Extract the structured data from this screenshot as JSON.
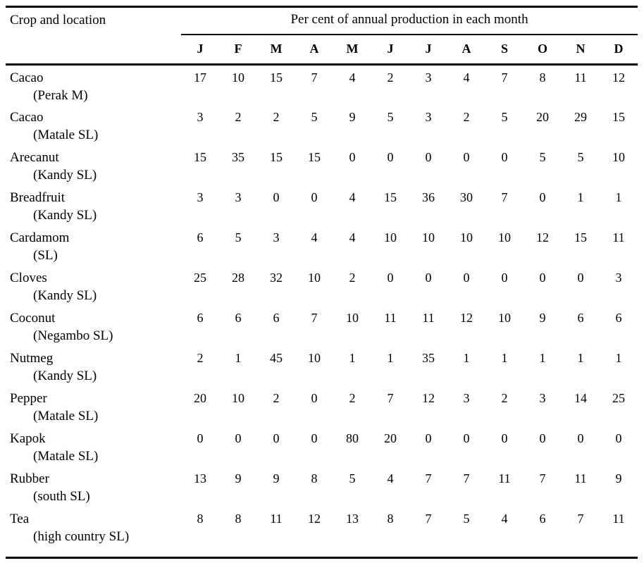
{
  "table": {
    "col1_header": "Crop and location",
    "span_header": "Per cent of annual production in each month",
    "months": [
      "J",
      "F",
      "M",
      "A",
      "M",
      "J",
      "J",
      "A",
      "S",
      "O",
      "N",
      "D"
    ],
    "rows": [
      {
        "crop": "Cacao",
        "location": "(Perak M)",
        "values": [
          17,
          10,
          15,
          7,
          4,
          2,
          3,
          4,
          7,
          8,
          11,
          12
        ]
      },
      {
        "crop": "Cacao",
        "location": "(Matale SL)",
        "values": [
          3,
          2,
          2,
          5,
          9,
          5,
          3,
          2,
          5,
          20,
          29,
          15
        ]
      },
      {
        "crop": "Arecanut",
        "location": "(Kandy SL)",
        "values": [
          15,
          35,
          15,
          15,
          0,
          0,
          0,
          0,
          0,
          5,
          5,
          10
        ]
      },
      {
        "crop": "Breadfruit",
        "location": "(Kandy SL)",
        "values": [
          3,
          3,
          0,
          0,
          4,
          15,
          36,
          30,
          7,
          0,
          1,
          1
        ]
      },
      {
        "crop": "Cardamom",
        "location": "(SL)",
        "values": [
          6,
          5,
          3,
          4,
          4,
          10,
          10,
          10,
          10,
          12,
          15,
          11
        ]
      },
      {
        "crop": "Cloves",
        "location": "(Kandy SL)",
        "values": [
          25,
          28,
          32,
          10,
          2,
          0,
          0,
          0,
          0,
          0,
          0,
          3
        ]
      },
      {
        "crop": "Coconut",
        "location": "(Negambo SL)",
        "values": [
          6,
          6,
          6,
          7,
          10,
          11,
          11,
          12,
          10,
          9,
          6,
          6
        ]
      },
      {
        "crop": "Nutmeg",
        "location": "(Kandy SL)",
        "values": [
          2,
          1,
          45,
          10,
          1,
          1,
          35,
          1,
          1,
          1,
          1,
          1
        ]
      },
      {
        "crop": "Pepper",
        "location": "(Matale SL)",
        "values": [
          20,
          10,
          2,
          0,
          2,
          7,
          12,
          3,
          2,
          3,
          14,
          25
        ]
      },
      {
        "crop": "Kapok",
        "location": "(Matale SL)",
        "values": [
          0,
          0,
          0,
          0,
          80,
          20,
          0,
          0,
          0,
          0,
          0,
          0
        ]
      },
      {
        "crop": "Rubber",
        "location": "(south SL)",
        "values": [
          13,
          9,
          9,
          8,
          5,
          4,
          7,
          7,
          11,
          7,
          11,
          9
        ]
      },
      {
        "crop": "Tea",
        "location": "(high country SL)",
        "values": [
          8,
          8,
          11,
          12,
          13,
          8,
          7,
          5,
          4,
          6,
          7,
          11
        ]
      }
    ]
  },
  "chart_data": {
    "type": "table",
    "title": "Per cent of annual production in each month",
    "categories": [
      "J",
      "F",
      "M",
      "A",
      "M",
      "J",
      "J",
      "A",
      "S",
      "O",
      "N",
      "D"
    ],
    "series": [
      {
        "name": "Cacao (Perak M)",
        "values": [
          17,
          10,
          15,
          7,
          4,
          2,
          3,
          4,
          7,
          8,
          11,
          12
        ]
      },
      {
        "name": "Cacao (Matale SL)",
        "values": [
          3,
          2,
          2,
          5,
          9,
          5,
          3,
          2,
          5,
          20,
          29,
          15
        ]
      },
      {
        "name": "Arecanut (Kandy SL)",
        "values": [
          15,
          35,
          15,
          15,
          0,
          0,
          0,
          0,
          0,
          5,
          5,
          10
        ]
      },
      {
        "name": "Breadfruit (Kandy SL)",
        "values": [
          3,
          3,
          0,
          0,
          4,
          15,
          36,
          30,
          7,
          0,
          1,
          1
        ]
      },
      {
        "name": "Cardamom (SL)",
        "values": [
          6,
          5,
          3,
          4,
          4,
          10,
          10,
          10,
          10,
          12,
          15,
          11
        ]
      },
      {
        "name": "Cloves (Kandy SL)",
        "values": [
          25,
          28,
          32,
          10,
          2,
          0,
          0,
          0,
          0,
          0,
          0,
          3
        ]
      },
      {
        "name": "Coconut (Negambo SL)",
        "values": [
          6,
          6,
          6,
          7,
          10,
          11,
          11,
          12,
          10,
          9,
          6,
          6
        ]
      },
      {
        "name": "Nutmeg (Kandy SL)",
        "values": [
          2,
          1,
          45,
          10,
          1,
          1,
          35,
          1,
          1,
          1,
          1,
          1
        ]
      },
      {
        "name": "Pepper (Matale SL)",
        "values": [
          20,
          10,
          2,
          0,
          2,
          7,
          12,
          3,
          2,
          3,
          14,
          25
        ]
      },
      {
        "name": "Kapok (Matale SL)",
        "values": [
          0,
          0,
          0,
          0,
          80,
          20,
          0,
          0,
          0,
          0,
          0,
          0
        ]
      },
      {
        "name": "Rubber (south SL)",
        "values": [
          13,
          9,
          9,
          8,
          5,
          4,
          7,
          7,
          11,
          7,
          11,
          9
        ]
      },
      {
        "name": "Tea (high country SL)",
        "values": [
          8,
          8,
          11,
          12,
          13,
          8,
          7,
          5,
          4,
          6,
          7,
          11
        ]
      }
    ]
  }
}
